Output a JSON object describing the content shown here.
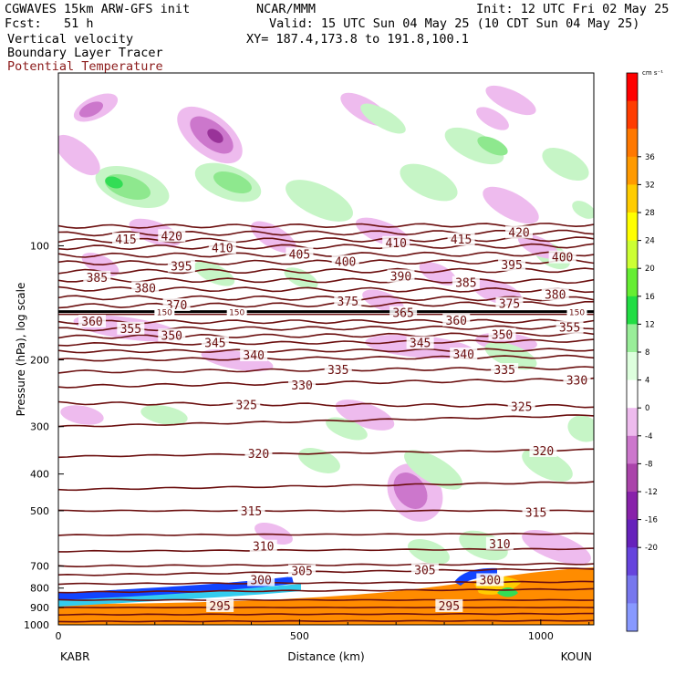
{
  "header": {
    "model": "CGWAVES 15km ARW-GFS init",
    "forecast": "Fcst:   51 h",
    "org": "NCAR/MMM",
    "init": "Init: 12 UTC Fri 02 May 25",
    "valid": "Valid: 15 UTC Sun 04 May 25 (10 CDT Sun 04 May 25)",
    "xy": "XY= 187.4,173.8 to 191.8,100.1",
    "field1": "Vertical velocity",
    "field2": "Boundary Layer Tracer",
    "field3": "Potential Temperature"
  },
  "colorbar": {
    "unit": "cm s⁻¹",
    "levels": [
      "36",
      "32",
      "28",
      "24",
      "20",
      "16",
      "12",
      "8",
      "4",
      "0",
      "-4",
      "-8",
      "-12",
      "-16",
      "-20"
    ],
    "colors": [
      "#ff0000",
      "#ff3c00",
      "#ff7800",
      "#ff9a00",
      "#ffcc00",
      "#ffff00",
      "#ccff33",
      "#66ee33",
      "#22dd44",
      "#99ee99",
      "#ddffdd",
      "#ffffff",
      "#eebbee",
      "#cc77cc",
      "#aa44aa",
      "#8822aa",
      "#6622bb",
      "#6644dd",
      "#7777ee",
      "#8899ff"
    ]
  },
  "colors": {
    "theta_line": "#6b0f0f",
    "up_light": "#c6f5c6",
    "up_mid": "#8ee88e",
    "up_strong": "#33dd55",
    "down_light": "#eebbee",
    "down_mid": "#cc77cc",
    "down_strong": "#993399",
    "pbl_orange": "#ff8c00",
    "pbl_yellow": "#ffcc00",
    "pbl_blue": "#1144ff",
    "pbl_cyan": "#33ccee"
  },
  "chart_data": {
    "type": "contour",
    "ylabel": "Pressure (hPa), log scale",
    "xlabel": "Distance (km)",
    "x_endpoints": {
      "left": "KABR",
      "right": "KOUN"
    },
    "xlim": [
      0,
      1110
    ],
    "x_ticks": [
      0,
      500,
      1000
    ],
    "ylim": [
      1000,
      35
    ],
    "y_scale": "log",
    "y_ticks": [
      1000,
      900,
      800,
      700,
      500,
      400,
      300,
      200,
      100
    ],
    "theta_labels": [
      {
        "t": "295",
        "x": 335,
        "p": 890
      },
      {
        "t": "295",
        "x": 810,
        "p": 890
      },
      {
        "t": "300",
        "x": 420,
        "p": 760
      },
      {
        "t": "300",
        "x": 895,
        "p": 760
      },
      {
        "t": "305",
        "x": 505,
        "p": 720
      },
      {
        "t": "305",
        "x": 760,
        "p": 715
      },
      {
        "t": "310",
        "x": 425,
        "p": 620
      },
      {
        "t": "310",
        "x": 915,
        "p": 610
      },
      {
        "t": "315",
        "x": 400,
        "p": 500
      },
      {
        "t": "315",
        "x": 990,
        "p": 505
      },
      {
        "t": "320",
        "x": 415,
        "p": 353
      },
      {
        "t": "320",
        "x": 1005,
        "p": 347
      },
      {
        "t": "325",
        "x": 390,
        "p": 262
      },
      {
        "t": "325",
        "x": 960,
        "p": 265
      },
      {
        "t": "330",
        "x": 505,
        "p": 233
      },
      {
        "t": "330",
        "x": 1075,
        "p": 226
      },
      {
        "t": "335",
        "x": 580,
        "p": 212
      },
      {
        "t": "335",
        "x": 925,
        "p": 212
      },
      {
        "t": "340",
        "x": 405,
        "p": 194
      },
      {
        "t": "340",
        "x": 840,
        "p": 193
      },
      {
        "t": "345",
        "x": 325,
        "p": 180
      },
      {
        "t": "345",
        "x": 750,
        "p": 180
      },
      {
        "t": "350",
        "x": 235,
        "p": 172
      },
      {
        "t": "350",
        "x": 920,
        "p": 171
      },
      {
        "t": "355",
        "x": 150,
        "p": 165
      },
      {
        "t": "355",
        "x": 1060,
        "p": 164
      },
      {
        "t": "360",
        "x": 70,
        "p": 158
      },
      {
        "t": "360",
        "x": 825,
        "p": 157
      },
      {
        "t": "365",
        "x": 715,
        "p": 150
      },
      {
        "t": "370",
        "x": 245,
        "p": 143
      },
      {
        "t": "375",
        "x": 600,
        "p": 140
      },
      {
        "t": "375",
        "x": 935,
        "p": 142
      },
      {
        "t": "380",
        "x": 180,
        "p": 129
      },
      {
        "t": "380",
        "x": 1030,
        "p": 134
      },
      {
        "t": "385",
        "x": 80,
        "p": 121
      },
      {
        "t": "385",
        "x": 845,
        "p": 125
      },
      {
        "t": "390",
        "x": 710,
        "p": 120
      },
      {
        "t": "395",
        "x": 255,
        "p": 113
      },
      {
        "t": "395",
        "x": 940,
        "p": 112
      },
      {
        "t": "400",
        "x": 595,
        "p": 110
      },
      {
        "t": "400",
        "x": 1045,
        "p": 107
      },
      {
        "t": "405",
        "x": 500,
        "p": 105
      },
      {
        "t": "410",
        "x": 340,
        "p": 101
      },
      {
        "t": "410",
        "x": 700,
        "p": 98
      },
      {
        "t": "415",
        "x": 140,
        "p": 96
      },
      {
        "t": "415",
        "x": 835,
        "p": 96
      },
      {
        "t": "420",
        "x": 235,
        "p": 94
      },
      {
        "t": "420",
        "x": 955,
        "p": 92
      }
    ],
    "tropopause_labels": [
      {
        "t": "150",
        "x": 220,
        "p": 150
      },
      {
        "t": "150",
        "x": 370,
        "p": 150
      },
      {
        "t": "150",
        "x": 1075,
        "p": 150
      }
    ]
  }
}
